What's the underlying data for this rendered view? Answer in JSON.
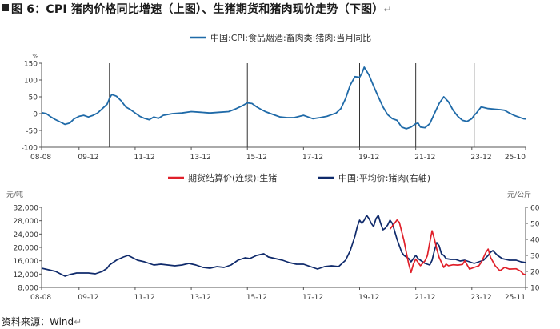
{
  "figure": {
    "title": "图 6：CPI 猪肉价格同比增速（上图）、生猪期货和猪肉现价走势（下图）",
    "return_mark": "↵",
    "source": "资料来源：Wind"
  },
  "colors": {
    "navy": "#0f2a6b",
    "blue": "#1f6aa8",
    "red": "#e0202a",
    "axis": "#555555",
    "divider": "#333333"
  },
  "chart_data": [
    {
      "type": "line",
      "legend_position": "top",
      "ylabel": "%",
      "ylim": [
        -100,
        150
      ],
      "yticks": [
        "150",
        "100",
        "50",
        "0",
        "-50",
        "-100"
      ],
      "grid": false,
      "x_range": [
        2008.583,
        2025.833
      ],
      "xticks": [
        "08-08",
        "09-12",
        "11-12",
        "13-12",
        "15-12",
        "17-12",
        "19-12",
        "21-12",
        "23-12",
        "25-10"
      ],
      "vlines": [
        2011.0,
        2015.917,
        2019.917,
        2021.917,
        2024.0
      ],
      "series": [
        {
          "name": "中国:CPI:食品烟酒:畜肉类:猪肉:当月同比",
          "color": "#1f6aa8",
          "x": [
            2008.583,
            2008.75,
            2008.917,
            2009.083,
            2009.25,
            2009.417,
            2009.583,
            2009.75,
            2009.917,
            2010.083,
            2010.25,
            2010.417,
            2010.583,
            2010.75,
            2010.917,
            2011.0,
            2011.083,
            2011.25,
            2011.417,
            2011.583,
            2011.75,
            2011.917,
            2012.083,
            2012.25,
            2012.417,
            2012.583,
            2012.75,
            2012.917,
            2013.25,
            2013.583,
            2013.917,
            2014.25,
            2014.583,
            2014.917,
            2015.25,
            2015.5,
            2015.75,
            2015.917,
            2016.083,
            2016.25,
            2016.417,
            2016.583,
            2016.75,
            2016.917,
            2017.083,
            2017.333,
            2017.583,
            2017.917,
            2018.25,
            2018.5,
            2018.75,
            2018.917,
            2019.083,
            2019.25,
            2019.417,
            2019.583,
            2019.75,
            2019.917,
            2020.0,
            2020.083,
            2020.25,
            2020.417,
            2020.583,
            2020.75,
            2020.917,
            2021.083,
            2021.25,
            2021.417,
            2021.583,
            2021.75,
            2021.917,
            2022.0,
            2022.083,
            2022.25,
            2022.417,
            2022.583,
            2022.75,
            2022.917,
            2023.083,
            2023.25,
            2023.417,
            2023.583,
            2023.75,
            2023.917,
            2024.0,
            2024.083,
            2024.25,
            2024.5,
            2024.75,
            2024.917,
            2025.083,
            2025.25,
            2025.417,
            2025.583,
            2025.75,
            2025.833
          ],
          "y": [
            3,
            0,
            -10,
            -18,
            -25,
            -32,
            -28,
            -15,
            -8,
            -5,
            -10,
            -5,
            2,
            15,
            28,
            45,
            57,
            52,
            38,
            20,
            12,
            2,
            -8,
            -14,
            -18,
            -10,
            -14,
            -5,
            0,
            2,
            6,
            4,
            2,
            4,
            6,
            14,
            24,
            32,
            30,
            20,
            12,
            5,
            0,
            -5,
            -10,
            -12,
            -12,
            -5,
            -15,
            -12,
            -8,
            -3,
            2,
            15,
            45,
            85,
            110,
            108,
            120,
            138,
            115,
            82,
            50,
            20,
            -3,
            -15,
            -20,
            -40,
            -45,
            -40,
            -30,
            -28,
            -40,
            -42,
            -30,
            0,
            30,
            50,
            35,
            10,
            -8,
            -20,
            -23,
            -15,
            -5,
            2,
            20,
            15,
            13,
            12,
            10,
            2,
            -5,
            -10,
            -15,
            -16
          ]
        }
      ]
    },
    {
      "type": "line",
      "legend_position": "top",
      "ylabel_left": "元/吨",
      "ylabel_right": "元/公斤",
      "ylim_left": [
        8000,
        32000
      ],
      "ylim_right": [
        10,
        60
      ],
      "yticks_left": [
        "32,000",
        "28,000",
        "24,000",
        "20,000",
        "16,000",
        "12,000",
        "8,000"
      ],
      "yticks_right": [
        "60",
        "50",
        "40",
        "30",
        "20",
        "10"
      ],
      "grid": false,
      "x_range": [
        2008.583,
        2025.833
      ],
      "xticks": [
        "08-08",
        "09-12",
        "11-12",
        "13-12",
        "15-12",
        "17-12",
        "19-12",
        "21-12",
        "23-12",
        "25-11"
      ],
      "series": [
        {
          "name": "期货结算价(连续):生猪",
          "axis": "left",
          "color": "#e0202a",
          "x": [
            2021.0,
            2021.25,
            2021.333,
            2021.5,
            2021.583,
            2021.667,
            2021.75,
            2021.833,
            2021.917,
            2022.0,
            2022.083,
            2022.25,
            2022.333,
            2022.417,
            2022.5,
            2022.583,
            2022.667,
            2022.75,
            2022.833,
            2022.917,
            2023.0,
            2023.083,
            2023.25,
            2023.417,
            2023.583,
            2023.667,
            2023.833,
            2024.0,
            2024.167,
            2024.25,
            2024.417,
            2024.5,
            2024.583,
            2024.75,
            2024.917,
            2025.083,
            2025.25,
            2025.5,
            2025.667,
            2025.75,
            2025.833
          ],
          "y": [
            25500,
            28200,
            27500,
            22000,
            18500,
            15000,
            12500,
            15000,
            16500,
            15500,
            14500,
            16000,
            17500,
            21500,
            25000,
            22500,
            19500,
            17000,
            15500,
            14000,
            15000,
            14500,
            14800,
            14700,
            14900,
            16000,
            13500,
            14000,
            14500,
            15500,
            18500,
            19500,
            17000,
            14500,
            13000,
            14000,
            13500,
            13600,
            12800,
            12000,
            11800
          ]
        },
        {
          "name": "中国:平均价:猪肉(右轴)",
          "axis": "right",
          "color": "#0f2a6b",
          "x": [
            2008.583,
            2008.833,
            2009.083,
            2009.417,
            2009.583,
            2009.833,
            2010.25,
            2010.5,
            2010.75,
            2010.917,
            2011.0,
            2011.25,
            2011.5,
            2011.667,
            2011.833,
            2012.0,
            2012.25,
            2012.583,
            2012.833,
            2013.083,
            2013.333,
            2013.583,
            2013.833,
            2014.083,
            2014.333,
            2014.583,
            2014.833,
            2015.083,
            2015.333,
            2015.583,
            2015.833,
            2016.0,
            2016.25,
            2016.5,
            2016.667,
            2016.917,
            2017.167,
            2017.417,
            2017.667,
            2017.917,
            2018.167,
            2018.417,
            2018.667,
            2018.917,
            2019.167,
            2019.417,
            2019.583,
            2019.75,
            2019.833,
            2019.917,
            2020.0,
            2020.083,
            2020.167,
            2020.25,
            2020.333,
            2020.417,
            2020.5,
            2020.583,
            2020.667,
            2020.75,
            2020.833,
            2020.917,
            2021.0,
            2021.083,
            2021.167,
            2021.25,
            2021.333,
            2021.417,
            2021.5,
            2021.583,
            2021.667,
            2021.75,
            2021.833,
            2021.917,
            2022.0,
            2022.083,
            2022.25,
            2022.417,
            2022.5,
            2022.583,
            2022.667,
            2022.75,
            2022.833,
            2022.917,
            2023.0,
            2023.167,
            2023.333,
            2023.5,
            2023.667,
            2023.833,
            2024.0,
            2024.167,
            2024.333,
            2024.5,
            2024.583,
            2024.667,
            2024.833,
            2025.0,
            2025.25,
            2025.5,
            2025.667,
            2025.833
          ],
          "y": [
            22,
            21,
            20,
            17,
            18,
            19,
            19,
            18.5,
            20,
            22,
            24,
            27,
            29,
            30,
            28.5,
            27,
            26,
            24,
            24.5,
            24,
            23.5,
            24,
            25,
            24,
            22.5,
            22,
            23,
            22.5,
            24,
            27,
            28.5,
            28,
            30,
            31,
            29,
            28,
            27,
            25.5,
            24.5,
            24.5,
            23,
            21.5,
            23,
            23.5,
            23,
            27,
            33,
            42,
            48,
            52,
            50,
            52,
            55,
            53,
            50,
            48,
            53,
            55,
            50,
            46,
            47,
            49,
            52,
            50,
            45,
            40,
            36,
            32,
            30,
            29,
            28,
            26,
            28,
            30,
            28,
            27,
            25,
            24,
            27,
            33,
            38,
            36,
            31,
            30,
            28,
            27.5,
            27.5,
            26.5,
            27,
            26,
            25,
            26,
            27,
            30,
            32,
            33,
            30,
            28,
            27,
            27,
            26,
            25.5
          ]
        }
      ]
    }
  ]
}
